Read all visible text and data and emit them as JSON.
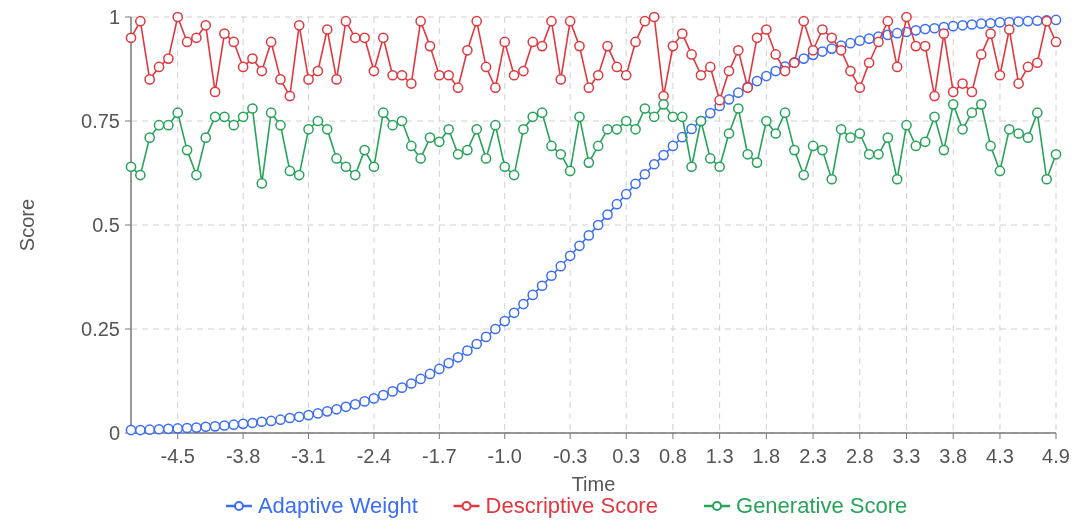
{
  "chart_data": {
    "type": "line",
    "xlabel": "Time",
    "ylabel": "Score",
    "marker": "circle",
    "grid": true,
    "legend": "bottom",
    "x": [
      -5,
      -4.9,
      -4.8,
      -4.7,
      -4.6,
      -4.5,
      -4.4,
      -4.3,
      -4.2,
      -4.1,
      -4,
      -3.9,
      -3.8,
      -3.7,
      -3.6,
      -3.5,
      -3.4,
      -3.3,
      -3.2,
      -3.1,
      -3,
      -2.9,
      -2.8,
      -2.7,
      -2.6,
      -2.5,
      -2.4,
      -2.3,
      -2.2,
      -2.1,
      -2,
      -1.9,
      -1.8,
      -1.7,
      -1.6,
      -1.5,
      -1.4,
      -1.3,
      -1.2,
      -1.1,
      -1,
      -0.9,
      -0.8,
      -0.7,
      -0.6,
      -0.5,
      -0.4,
      -0.3,
      -0.2,
      -0.1,
      0,
      0.1,
      0.2,
      0.3,
      0.4,
      0.5,
      0.6,
      0.7,
      0.8,
      0.9,
      1,
      1.1,
      1.2,
      1.3,
      1.4,
      1.5,
      1.6,
      1.7,
      1.8,
      1.9,
      2,
      2.1,
      2.2,
      2.3,
      2.4,
      2.5,
      2.6,
      2.7,
      2.8,
      2.9,
      3,
      3.1,
      3.2,
      3.3,
      3.4,
      3.5,
      3.6,
      3.7,
      3.8,
      3.9,
      4,
      4.1,
      4.2,
      4.3,
      4.4,
      4.5,
      4.6,
      4.7,
      4.8,
      4.9
    ],
    "xlim": [
      -5,
      4.9
    ],
    "xticks": [
      -4.5,
      -3.8,
      -3.1,
      -2.4,
      -1.7,
      {
        "value": -1,
        "label": "-1.0"
      },
      -0.3,
      0.3,
      0.8,
      1.3,
      1.8,
      2.3,
      2.8,
      3.3,
      3.8,
      4.3,
      4.9
    ],
    "ylim": [
      0,
      1
    ],
    "yticks": [
      0,
      0.25,
      0.5,
      0.75,
      1
    ],
    "series": [
      {
        "name": "Adaptive Weight",
        "color": "#3b6ef5",
        "values": [
          0.007,
          0.007,
          0.008,
          0.009,
          0.01,
          0.011,
          0.012,
          0.013,
          0.015,
          0.016,
          0.018,
          0.02,
          0.022,
          0.024,
          0.027,
          0.029,
          0.032,
          0.036,
          0.039,
          0.043,
          0.047,
          0.052,
          0.057,
          0.063,
          0.069,
          0.076,
          0.083,
          0.091,
          0.1,
          0.109,
          0.119,
          0.13,
          0.142,
          0.154,
          0.168,
          0.182,
          0.198,
          0.214,
          0.231,
          0.25,
          0.269,
          0.289,
          0.31,
          0.332,
          0.354,
          0.378,
          0.401,
          0.426,
          0.45,
          0.475,
          0.5,
          0.525,
          0.55,
          0.574,
          0.599,
          0.622,
          0.646,
          0.668,
          0.69,
          0.711,
          0.731,
          0.75,
          0.769,
          0.786,
          0.802,
          0.818,
          0.832,
          0.846,
          0.858,
          0.87,
          0.881,
          0.891,
          0.9,
          0.909,
          0.917,
          0.924,
          0.931,
          0.937,
          0.943,
          0.948,
          0.953,
          0.957,
          0.961,
          0.964,
          0.968,
          0.971,
          0.973,
          0.976,
          0.978,
          0.98,
          0.982,
          0.984,
          0.985,
          0.987,
          0.988,
          0.989,
          0.99,
          0.991,
          0.992,
          0.993
        ]
      },
      {
        "name": "Descriptive Score",
        "color": "#e0383e",
        "values": [
          0.95,
          0.99,
          0.85,
          0.88,
          0.9,
          1,
          0.94,
          0.95,
          0.98,
          0.82,
          0.96,
          0.94,
          0.88,
          0.9,
          0.87,
          0.94,
          0.85,
          0.81,
          0.98,
          0.85,
          0.87,
          0.97,
          0.85,
          0.99,
          0.95,
          0.95,
          0.87,
          0.95,
          0.86,
          0.86,
          0.84,
          0.99,
          0.93,
          0.86,
          0.86,
          0.83,
          0.92,
          0.99,
          0.88,
          0.83,
          0.94,
          0.86,
          0.87,
          0.94,
          0.93,
          0.99,
          0.85,
          0.99,
          0.93,
          0.83,
          0.86,
          0.93,
          0.88,
          0.86,
          0.94,
          0.99,
          1,
          0.81,
          0.93,
          0.96,
          0.91,
          0.86,
          0.88,
          0.8,
          0.87,
          0.92,
          0.83,
          0.95,
          0.97,
          0.91,
          0.87,
          0.89,
          0.99,
          0.92,
          0.97,
          0.95,
          0.92,
          0.87,
          0.83,
          0.89,
          0.94,
          0.99,
          0.88,
          1,
          0.93,
          0.93,
          0.81,
          0.96,
          0.82,
          0.84,
          0.82,
          0.91,
          0.96,
          0.86,
          0.97,
          0.84,
          0.88,
          0.89,
          0.99,
          0.94
        ]
      },
      {
        "name": "Generative Score",
        "color": "#27a35a",
        "values": [
          0.64,
          0.62,
          0.71,
          0.74,
          0.74,
          0.77,
          0.68,
          0.62,
          0.71,
          0.76,
          0.76,
          0.74,
          0.76,
          0.78,
          0.6,
          0.77,
          0.74,
          0.63,
          0.62,
          0.73,
          0.75,
          0.73,
          0.66,
          0.64,
          0.62,
          0.68,
          0.64,
          0.77,
          0.74,
          0.75,
          0.69,
          0.66,
          0.71,
          0.7,
          0.73,
          0.67,
          0.68,
          0.73,
          0.66,
          0.74,
          0.64,
          0.62,
          0.73,
          0.76,
          0.77,
          0.69,
          0.67,
          0.63,
          0.76,
          0.65,
          0.69,
          0.73,
          0.73,
          0.75,
          0.73,
          0.78,
          0.76,
          0.79,
          0.76,
          0.76,
          0.64,
          0.75,
          0.66,
          0.64,
          0.72,
          0.78,
          0.67,
          0.65,
          0.75,
          0.72,
          0.77,
          0.68,
          0.62,
          0.69,
          0.68,
          0.61,
          0.73,
          0.71,
          0.72,
          0.67,
          0.67,
          0.71,
          0.61,
          0.74,
          0.69,
          0.7,
          0.76,
          0.68,
          0.79,
          0.73,
          0.77,
          0.79,
          0.69,
          0.63,
          0.73,
          0.72,
          0.71,
          0.77,
          0.61,
          0.67
        ]
      }
    ]
  }
}
